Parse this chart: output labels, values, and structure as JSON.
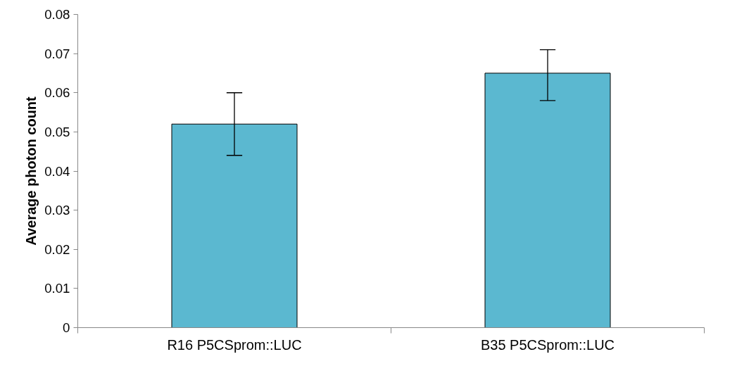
{
  "chart_data": {
    "type": "bar",
    "ylabel": "Average photon count",
    "categories": [
      "R16 P5CSprom::LUC",
      "B35 P5CSprom::LUC"
    ],
    "values": [
      0.052,
      0.065
    ],
    "errors": [
      [
        0.044,
        0.06
      ],
      [
        0.058,
        0.071
      ]
    ],
    "color": "#5bb8d0",
    "ylim": [
      0,
      0.08
    ],
    "yticks": [
      {
        "value": 0,
        "label": "0"
      },
      0.01,
      0.02,
      0.03,
      0.04,
      0.05,
      0.06,
      0.07,
      0.08
    ],
    "grid": false
  }
}
